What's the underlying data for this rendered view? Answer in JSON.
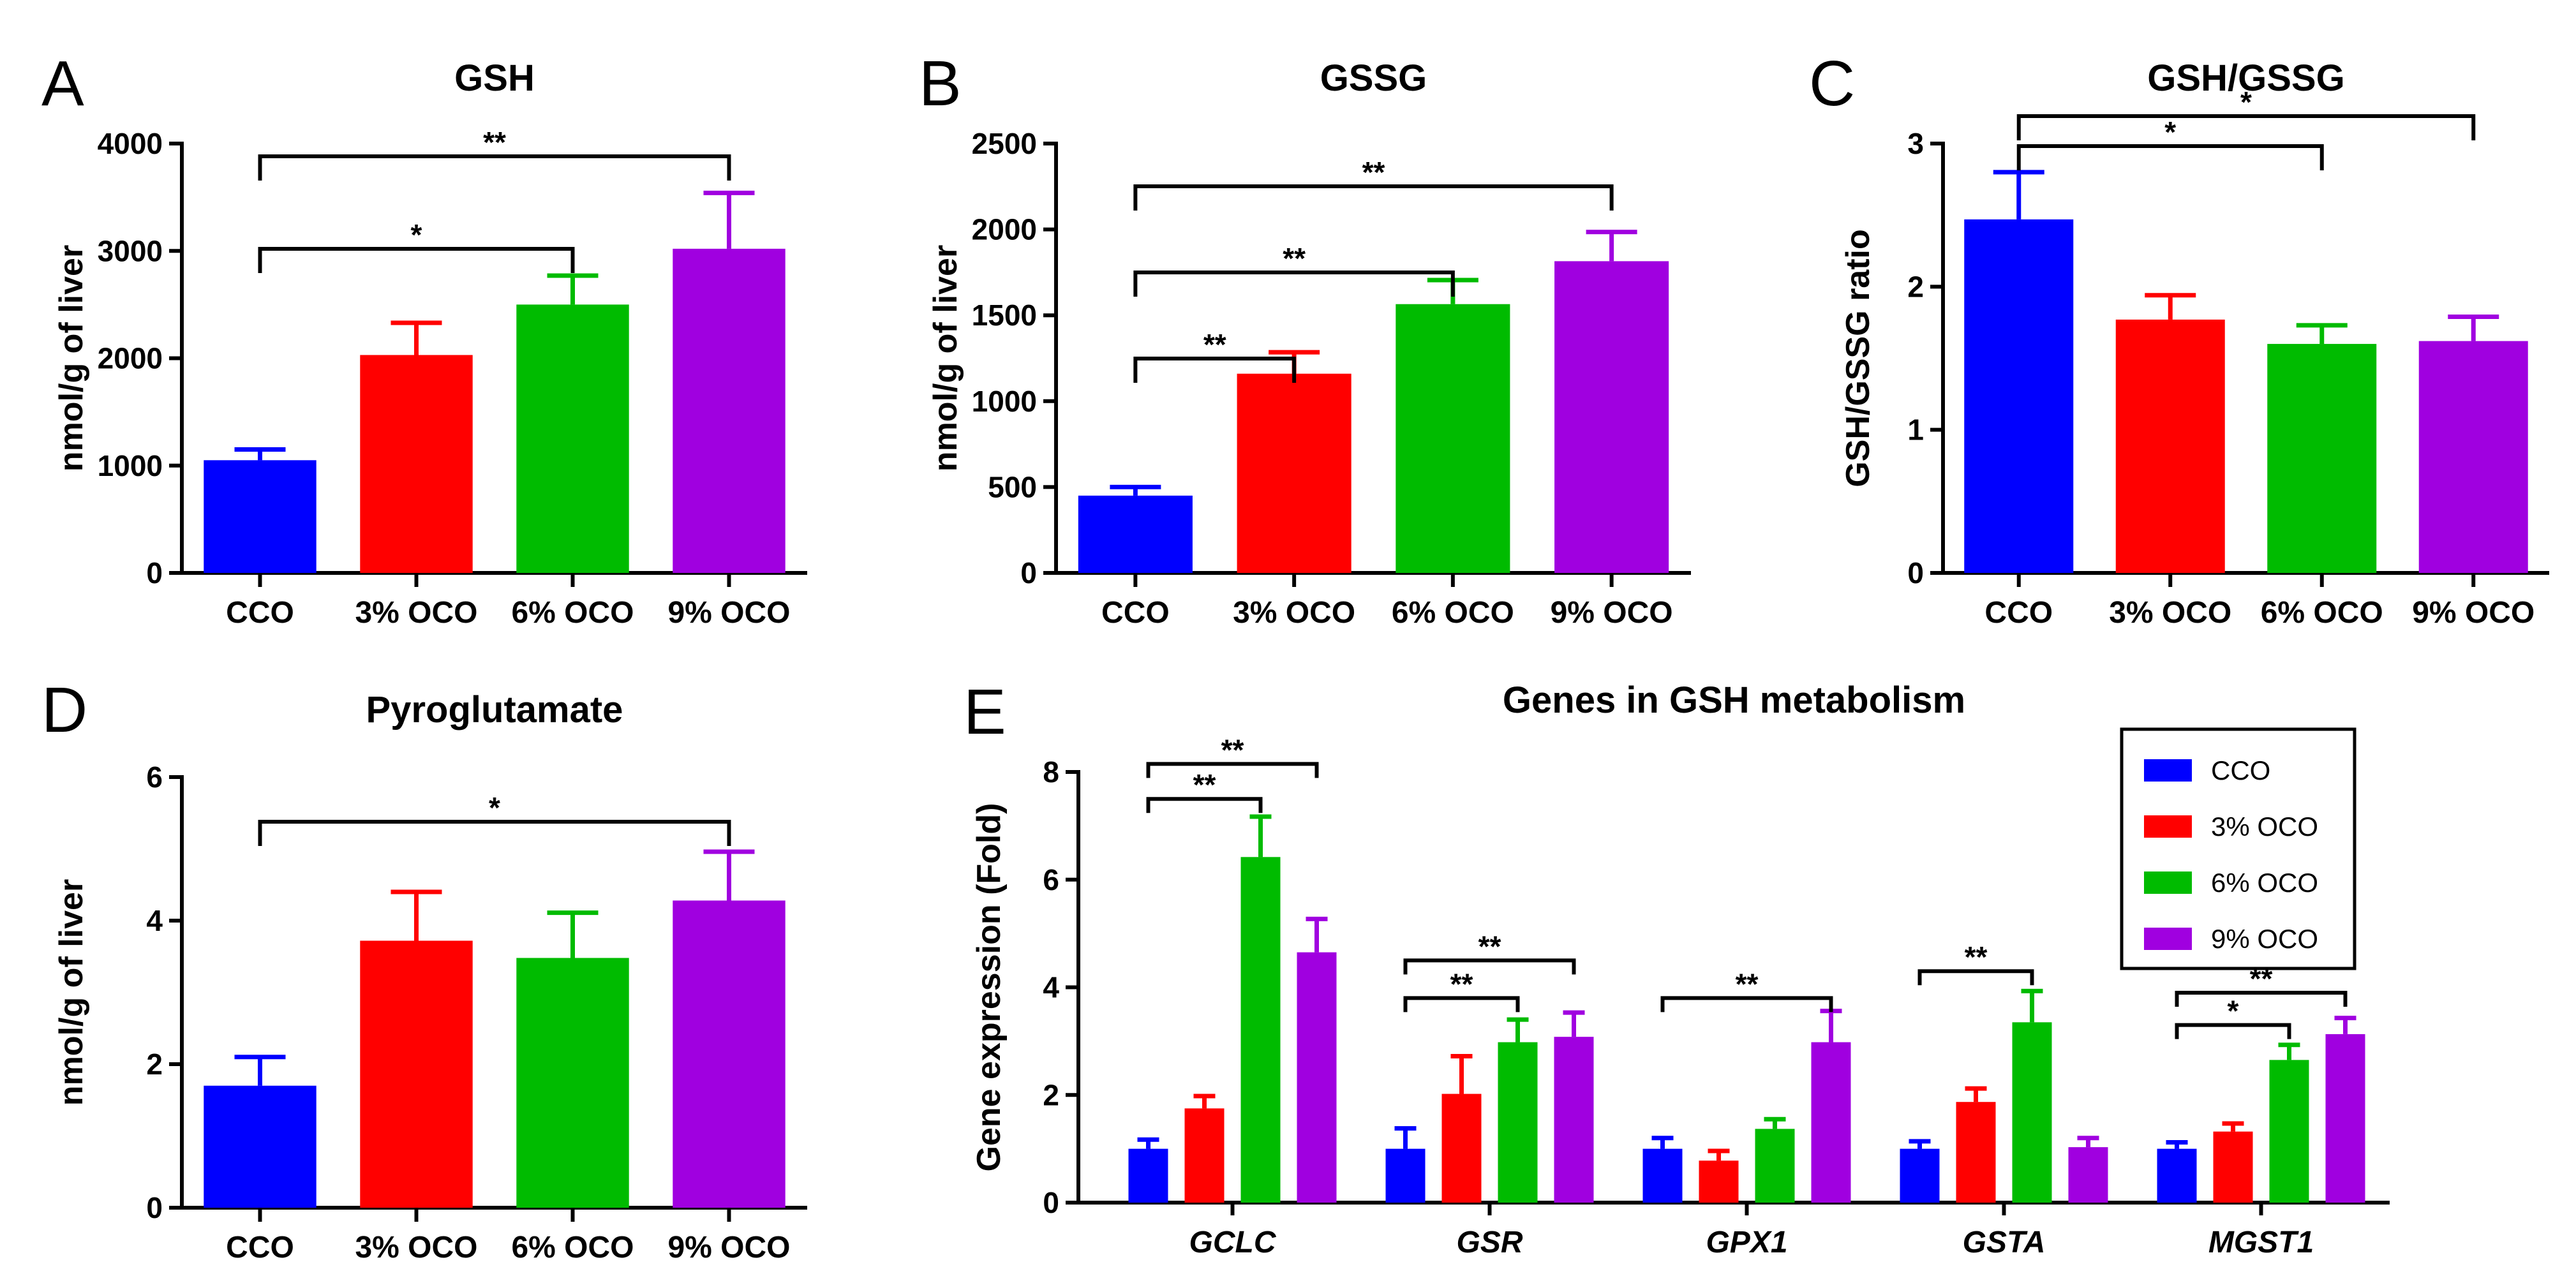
{
  "colors": {
    "CCO": "#0000ff",
    "3% OCO": "#ff0000",
    "6% OCO": "#00bb00",
    "9% OCO": "#a000e0"
  },
  "chart_data": [
    {
      "panel": "A",
      "type": "bar",
      "title": "GSH",
      "ylabel": "nmol/g of liver",
      "ylim": [
        0,
        4000
      ],
      "yticks": [
        0,
        1000,
        2000,
        3000,
        4000
      ],
      "categories": [
        "CCO",
        "3% OCO",
        "6% OCO",
        "9% OCO"
      ],
      "values": [
        1050,
        2030,
        2500,
        3020
      ],
      "errors": [
        100,
        300,
        270,
        520
      ],
      "significance": [
        {
          "from": 0,
          "to": 2,
          "label": "*"
        },
        {
          "from": 0,
          "to": 3,
          "label": "**"
        }
      ]
    },
    {
      "panel": "B",
      "type": "bar",
      "title": "GSSG",
      "ylabel": "nmol/g of liver",
      "ylim": [
        0,
        2500
      ],
      "yticks": [
        0,
        500,
        1000,
        1500,
        2000,
        2500
      ],
      "categories": [
        "CCO",
        "3% OCO",
        "6% OCO",
        "9% OCO"
      ],
      "values": [
        450,
        1160,
        1565,
        1815
      ],
      "errors": [
        50,
        125,
        140,
        170
      ],
      "significance": [
        {
          "from": 0,
          "to": 1,
          "label": "**"
        },
        {
          "from": 0,
          "to": 2,
          "label": "**"
        },
        {
          "from": 0,
          "to": 3,
          "label": "**"
        }
      ]
    },
    {
      "panel": "C",
      "type": "bar",
      "title": "GSH/GSSG",
      "ylabel": "GSH/GSSG ratio",
      "ylim": [
        0,
        3
      ],
      "yticks": [
        0,
        1,
        2,
        3
      ],
      "categories": [
        "CCO",
        "3% OCO",
        "6% OCO",
        "9% OCO"
      ],
      "values": [
        2.47,
        1.77,
        1.6,
        1.62
      ],
      "errors": [
        0.33,
        0.17,
        0.13,
        0.17
      ],
      "significance": [
        {
          "from": 0,
          "to": 2,
          "label": "*"
        },
        {
          "from": 0,
          "to": 3,
          "label": "*"
        }
      ]
    },
    {
      "panel": "D",
      "type": "bar",
      "title": "Pyroglutamate",
      "ylabel": "nmol/g of liver",
      "ylim": [
        0,
        6
      ],
      "yticks": [
        0,
        2,
        4,
        6
      ],
      "categories": [
        "CCO",
        "3% OCO",
        "6% OCO",
        "9% OCO"
      ],
      "values": [
        1.7,
        3.72,
        3.48,
        4.28
      ],
      "errors": [
        0.4,
        0.68,
        0.63,
        0.68
      ],
      "significance": [
        {
          "from": 0,
          "to": 3,
          "label": "*"
        }
      ]
    },
    {
      "panel": "E",
      "type": "bar",
      "title": "Genes in GSH metabolism",
      "ylabel": "Gene expression (Fold)",
      "ylim": [
        0,
        8
      ],
      "yticks": [
        0,
        2,
        4,
        6,
        8
      ],
      "categories": [
        "GCLC",
        "GSR",
        "GPX1",
        "GSTA",
        "MGST1"
      ],
      "series": [
        {
          "name": "CCO",
          "values": [
            1.0,
            1.0,
            1.0,
            1.0,
            1.0
          ],
          "errors": [
            0.17,
            0.38,
            0.2,
            0.14,
            0.12
          ]
        },
        {
          "name": "3% OCO",
          "values": [
            1.75,
            2.02,
            0.78,
            1.87,
            1.32
          ],
          "errors": [
            0.23,
            0.7,
            0.18,
            0.25,
            0.15
          ]
        },
        {
          "name": "6% OCO",
          "values": [
            6.42,
            2.98,
            1.37,
            3.35,
            2.65
          ],
          "errors": [
            0.75,
            0.42,
            0.18,
            0.58,
            0.28
          ]
        },
        {
          "name": "9% OCO",
          "values": [
            4.65,
            3.08,
            2.98,
            1.03,
            3.13
          ],
          "errors": [
            0.62,
            0.45,
            0.58,
            0.17,
            0.3
          ]
        }
      ],
      "significance": [
        {
          "group": 0,
          "from": 0,
          "to": 2,
          "label": "**",
          "y": 7.5
        },
        {
          "group": 0,
          "from": 0,
          "to": 3,
          "label": "**",
          "y": 8.15
        },
        {
          "group": 1,
          "from": 0,
          "to": 2,
          "label": "**",
          "y": 3.8
        },
        {
          "group": 1,
          "from": 0,
          "to": 3,
          "label": "**",
          "y": 4.5
        },
        {
          "group": 2,
          "from": 0,
          "to": 3,
          "label": "**",
          "y": 3.8
        },
        {
          "group": 3,
          "from": 0,
          "to": 2,
          "label": "**",
          "y": 4.3
        },
        {
          "group": 4,
          "from": 0,
          "to": 2,
          "label": "*",
          "y": 3.3
        },
        {
          "group": 4,
          "from": 0,
          "to": 3,
          "label": "**",
          "y": 3.9
        }
      ],
      "legend": {
        "position": "top-right",
        "entries": [
          "CCO",
          "3% OCO",
          "6% OCO",
          "9% OCO"
        ]
      }
    }
  ]
}
